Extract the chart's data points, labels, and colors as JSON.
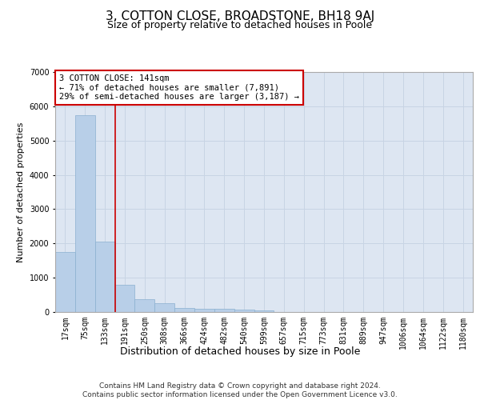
{
  "title": "3, COTTON CLOSE, BROADSTONE, BH18 9AJ",
  "subtitle": "Size of property relative to detached houses in Poole",
  "xlabel": "Distribution of detached houses by size in Poole",
  "ylabel": "Number of detached properties",
  "categories": [
    "17sqm",
    "75sqm",
    "133sqm",
    "191sqm",
    "250sqm",
    "308sqm",
    "366sqm",
    "424sqm",
    "482sqm",
    "540sqm",
    "599sqm",
    "657sqm",
    "715sqm",
    "773sqm",
    "831sqm",
    "889sqm",
    "947sqm",
    "1006sqm",
    "1064sqm",
    "1122sqm",
    "1180sqm"
  ],
  "values": [
    1750,
    5750,
    2050,
    800,
    380,
    250,
    110,
    90,
    90,
    65,
    55,
    0,
    0,
    0,
    0,
    0,
    0,
    0,
    0,
    0,
    0
  ],
  "bar_color": "#b8cfe8",
  "bar_edge_color": "#8ab0d0",
  "grid_color": "#c8d4e4",
  "background_color": "#dde6f2",
  "vline_color": "#cc0000",
  "vline_x_index": 2.5,
  "annotation_text": "3 COTTON CLOSE: 141sqm\n← 71% of detached houses are smaller (7,891)\n29% of semi-detached houses are larger (3,187) →",
  "annotation_box_facecolor": "#ffffff",
  "annotation_box_edgecolor": "#cc0000",
  "footer_text": "Contains HM Land Registry data © Crown copyright and database right 2024.\nContains public sector information licensed under the Open Government Licence v3.0.",
  "ylim": [
    0,
    7000
  ],
  "yticks": [
    0,
    1000,
    2000,
    3000,
    4000,
    5000,
    6000,
    7000
  ],
  "title_fontsize": 11,
  "subtitle_fontsize": 9,
  "xlabel_fontsize": 9,
  "ylabel_fontsize": 8,
  "tick_fontsize": 7,
  "annotation_fontsize": 7.5,
  "footer_fontsize": 6.5
}
